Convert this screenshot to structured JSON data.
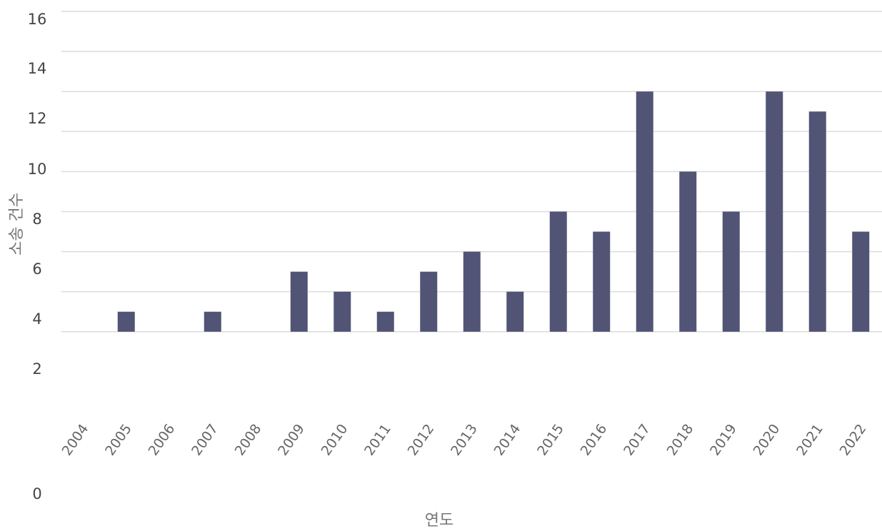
{
  "chart_data": {
    "type": "bar",
    "title": "",
    "xlabel": "연도",
    "ylabel": "소송 건수",
    "categories": [
      "2004",
      "2005",
      "2006",
      "2007",
      "2008",
      "2009",
      "2010",
      "2011",
      "2012",
      "2013",
      "2014",
      "2015",
      "2016",
      "2017",
      "2018",
      "2019",
      "2020",
      "2021",
      "2022"
    ],
    "values": [
      0,
      1,
      0,
      1,
      0,
      3,
      2,
      1,
      3,
      4,
      2,
      6,
      5,
      12,
      8,
      6,
      12,
      11,
      5
    ],
    "y_tick_labels": [
      "16",
      "14",
      "12",
      "10",
      "8",
      "6",
      "4",
      "2",
      "0"
    ],
    "grid": true,
    "colors": {
      "bar": "#515475",
      "grid": "#dcdcdc",
      "tick_text": "#444444"
    }
  }
}
